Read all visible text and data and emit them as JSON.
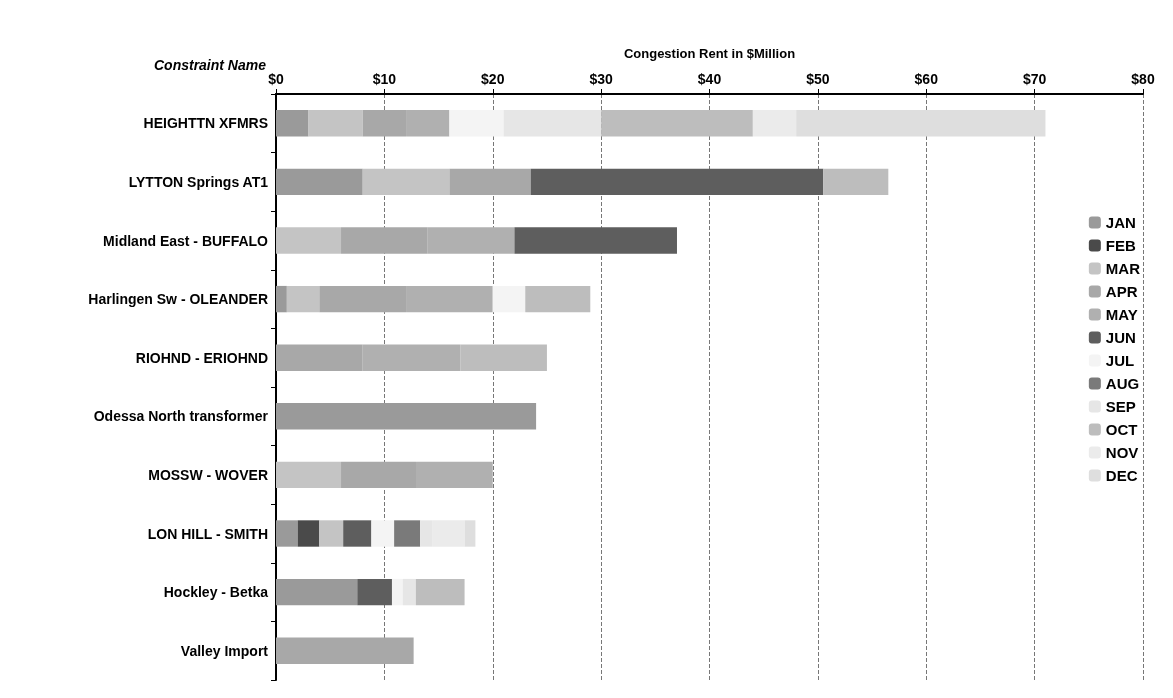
{
  "chart_data": {
    "type": "bar",
    "orientation": "horizontal",
    "stacked": true,
    "xlabel": "Congestion Rent in $Million",
    "ylabel": "Constraint Name",
    "categories": [
      "HEIGHTTN XFMRS",
      "LYTTON Springs AT1",
      "Midland East - BUFFALO",
      "Harlingen Sw - OLEANDER",
      "RIOHND - ERIOHND",
      "Odessa North transformer",
      "MOSSW - WOVER",
      "LON HILL - SMITH",
      "Hockley - Betka",
      "Valley Import"
    ],
    "xlim": [
      0,
      80
    ],
    "xticks": [
      {
        "value": 0,
        "label": "$0"
      },
      {
        "value": 10,
        "label": "$10"
      },
      {
        "value": 20,
        "label": "$20"
      },
      {
        "value": 30,
        "label": "$30"
      },
      {
        "value": 40,
        "label": "$40"
      },
      {
        "value": 50,
        "label": "$50"
      },
      {
        "value": 60,
        "label": "$60"
      },
      {
        "value": 70,
        "label": "$70"
      },
      {
        "value": 80,
        "label": "$80"
      }
    ],
    "grid": "x",
    "legend": "right",
    "series": [
      {
        "name": "JAN",
        "color": "#9a9a9a",
        "values": [
          3,
          8,
          null,
          1,
          null,
          24,
          null,
          2,
          7.5,
          null
        ]
      },
      {
        "name": "FEB",
        "color": "#4a4a4a",
        "values": [
          null,
          null,
          null,
          null,
          null,
          null,
          null,
          2,
          null,
          null
        ]
      },
      {
        "name": "MAR",
        "color": "#c4c4c4",
        "values": [
          5,
          8,
          6,
          3,
          null,
          null,
          6,
          2.2,
          null,
          null
        ]
      },
      {
        "name": "APR",
        "color": "#a8a8a8",
        "values": [
          4,
          7.5,
          8,
          8,
          8,
          null,
          7,
          null,
          null,
          12.7
        ]
      },
      {
        "name": "MAY",
        "color": "#b0b0b0",
        "values": [
          4,
          null,
          8,
          8,
          9,
          null,
          7,
          null,
          null,
          null
        ]
      },
      {
        "name": "JUN",
        "color": "#5e5e5e",
        "values": [
          null,
          27,
          15,
          null,
          null,
          null,
          null,
          2.6,
          3.2,
          null
        ]
      },
      {
        "name": "JUL",
        "color": "#f4f4f4",
        "values": [
          5,
          null,
          null,
          3,
          null,
          null,
          null,
          2.1,
          1,
          null
        ]
      },
      {
        "name": "AUG",
        "color": "#7a7a7a",
        "values": [
          null,
          null,
          null,
          null,
          null,
          null,
          null,
          2.4,
          null,
          null
        ]
      },
      {
        "name": "SEP",
        "color": "#e6e6e6",
        "values": [
          9,
          null,
          null,
          null,
          null,
          null,
          null,
          1.1,
          1.2,
          null
        ]
      },
      {
        "name": "OCT",
        "color": "#bdbdbd",
        "values": [
          14,
          6,
          null,
          6,
          8,
          null,
          null,
          null,
          4.5,
          null
        ]
      },
      {
        "name": "NOV",
        "color": "#ebebeb",
        "values": [
          4,
          null,
          null,
          null,
          null,
          null,
          null,
          3,
          null,
          null
        ]
      },
      {
        "name": "DEC",
        "color": "#dedede",
        "values": [
          23,
          null,
          null,
          null,
          null,
          null,
          null,
          1,
          null,
          null
        ]
      }
    ]
  }
}
